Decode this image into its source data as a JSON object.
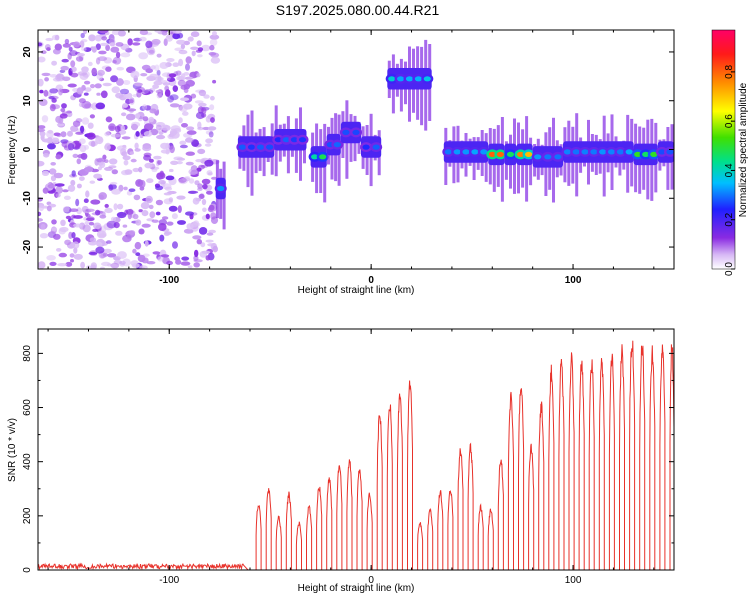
{
  "title": "S197.2025.080.00.44.R21",
  "chart_data": [
    {
      "type": "heatmap",
      "xlabel": "Height of straight line (km)",
      "ylabel": "Frequency (Hz)",
      "xlim": [
        -165,
        150
      ],
      "ylim": [
        -24.5,
        24.5
      ],
      "x_ticks": [
        -100,
        0,
        100
      ],
      "y_ticks": [
        -20,
        -10,
        0,
        10,
        20
      ],
      "colorbar": {
        "label": "Normalized spectral amplitude",
        "range": [
          0,
          0.97
        ],
        "ticks": [
          0,
          0.2,
          0.4,
          0.6,
          0.8
        ]
      },
      "segments": [
        {
          "x_start": -165,
          "x_end": -77,
          "kind": "noise"
        },
        {
          "x_start": -77,
          "x_end": -72,
          "freq": -8,
          "amp": 0.35
        },
        {
          "x_start": -66,
          "x_end": -48,
          "freq": 0.5,
          "amp": 0.3
        },
        {
          "x_start": -48,
          "x_end": -32,
          "freq": 2,
          "amp": 0.3
        },
        {
          "x_start": -30,
          "x_end": -22,
          "freq": -1.5,
          "amp": 0.5
        },
        {
          "x_start": -22,
          "x_end": -15,
          "freq": 1,
          "amp": 0.3
        },
        {
          "x_start": -15,
          "x_end": -5,
          "freq": 3.5,
          "amp": 0.3
        },
        {
          "x_start": -5,
          "x_end": 5,
          "freq": 0.5,
          "amp": 0.3
        },
        {
          "x_start": 8,
          "x_end": 30,
          "freq": 14.5,
          "amp": 0.4
        },
        {
          "x_start": 36,
          "x_end": 58,
          "freq": -0.5,
          "amp": 0.35
        },
        {
          "x_start": 58,
          "x_end": 66,
          "freq": -1,
          "amp": 0.95
        },
        {
          "x_start": 66,
          "x_end": 72,
          "freq": -1,
          "amp": 0.55
        },
        {
          "x_start": 72,
          "x_end": 80,
          "freq": -1,
          "amp": 0.8
        },
        {
          "x_start": 80,
          "x_end": 95,
          "freq": -1.5,
          "amp": 0.35
        },
        {
          "x_start": 95,
          "x_end": 130,
          "freq": -0.5,
          "amp": 0.35
        },
        {
          "x_start": 130,
          "x_end": 142,
          "freq": -1,
          "amp": 0.55
        },
        {
          "x_start": 142,
          "x_end": 150,
          "freq": -0.5,
          "amp": 0.3
        }
      ]
    },
    {
      "type": "line",
      "xlabel": "Height of straight line (km)",
      "ylabel": "SNR (10 * v/v)",
      "xlim": [
        -165,
        150
      ],
      "ylim": [
        0,
        890
      ],
      "x_ticks": [
        -100,
        0,
        100
      ],
      "y_ticks": [
        0,
        200,
        400,
        600,
        800
      ],
      "color": "#e8312a",
      "baseline": {
        "x_start": -165,
        "x_end": -63,
        "level": 15
      },
      "pulses": [
        {
          "x_start": -57.0,
          "x_end": -54.5,
          "peak": 250
        },
        {
          "x_start": -52.0,
          "x_end": -49.5,
          "peak": 310
        },
        {
          "x_start": -47.0,
          "x_end": -44.5,
          "peak": 200
        },
        {
          "x_start": -42.0,
          "x_end": -39.5,
          "peak": 290
        },
        {
          "x_start": -37.0,
          "x_end": -34.5,
          "peak": 180
        },
        {
          "x_start": -32.0,
          "x_end": -29.5,
          "peak": 240
        },
        {
          "x_start": -27.0,
          "x_end": -24.5,
          "peak": 320
        },
        {
          "x_start": -22.0,
          "x_end": -19.5,
          "peak": 350
        },
        {
          "x_start": -17.0,
          "x_end": -14.5,
          "peak": 400
        },
        {
          "x_start": -12.0,
          "x_end": -9.5,
          "peak": 420
        },
        {
          "x_start": -7.0,
          "x_end": -4.5,
          "peak": 390
        },
        {
          "x_start": -2.0,
          "x_end": 0.5,
          "peak": 290
        },
        {
          "x_start": 3.0,
          "x_end": 5.5,
          "peak": 600
        },
        {
          "x_start": 8.0,
          "x_end": 10.5,
          "peak": 640
        },
        {
          "x_start": 13.0,
          "x_end": 15.5,
          "peak": 680
        },
        {
          "x_start": 18.0,
          "x_end": 20.5,
          "peak": 720
        },
        {
          "x_start": 23.0,
          "x_end": 25.5,
          "peak": 180
        },
        {
          "x_start": 28.0,
          "x_end": 30.5,
          "peak": 230
        },
        {
          "x_start": 33.0,
          "x_end": 35.5,
          "peak": 300
        },
        {
          "x_start": 38.0,
          "x_end": 40.5,
          "peak": 310
        },
        {
          "x_start": 43.0,
          "x_end": 45.5,
          "peak": 460
        },
        {
          "x_start": 48.0,
          "x_end": 50.5,
          "peak": 470
        },
        {
          "x_start": 53.0,
          "x_end": 55.5,
          "peak": 240
        },
        {
          "x_start": 58.0,
          "x_end": 60.5,
          "peak": 230
        },
        {
          "x_start": 63.0,
          "x_end": 65.5,
          "peak": 430
        },
        {
          "x_start": 68.0,
          "x_end": 70.5,
          "peak": 660
        },
        {
          "x_start": 73.0,
          "x_end": 75.5,
          "peak": 720
        },
        {
          "x_start": 78.0,
          "x_end": 80.5,
          "peak": 470
        },
        {
          "x_start": 83.0,
          "x_end": 85.5,
          "peak": 630
        },
        {
          "x_start": 88.0,
          "x_end": 90.5,
          "peak": 760
        },
        {
          "x_start": 93.0,
          "x_end": 95.5,
          "peak": 800
        },
        {
          "x_start": 98.0,
          "x_end": 100.5,
          "peak": 810
        },
        {
          "x_start": 103.0,
          "x_end": 105.5,
          "peak": 800
        },
        {
          "x_start": 108.0,
          "x_end": 110.5,
          "peak": 790
        },
        {
          "x_start": 113.0,
          "x_end": 115.5,
          "peak": 800
        },
        {
          "x_start": 118.0,
          "x_end": 120.5,
          "peak": 820
        },
        {
          "x_start": 123.0,
          "x_end": 125.5,
          "peak": 840
        },
        {
          "x_start": 128.0,
          "x_end": 130.5,
          "peak": 880
        },
        {
          "x_start": 133.0,
          "x_end": 135.5,
          "peak": 860
        },
        {
          "x_start": 138.0,
          "x_end": 140.5,
          "peak": 830
        },
        {
          "x_start": 143.0,
          "x_end": 145.5,
          "peak": 850
        },
        {
          "x_start": 148.0,
          "x_end": 150.0,
          "peak": 870
        }
      ]
    }
  ]
}
